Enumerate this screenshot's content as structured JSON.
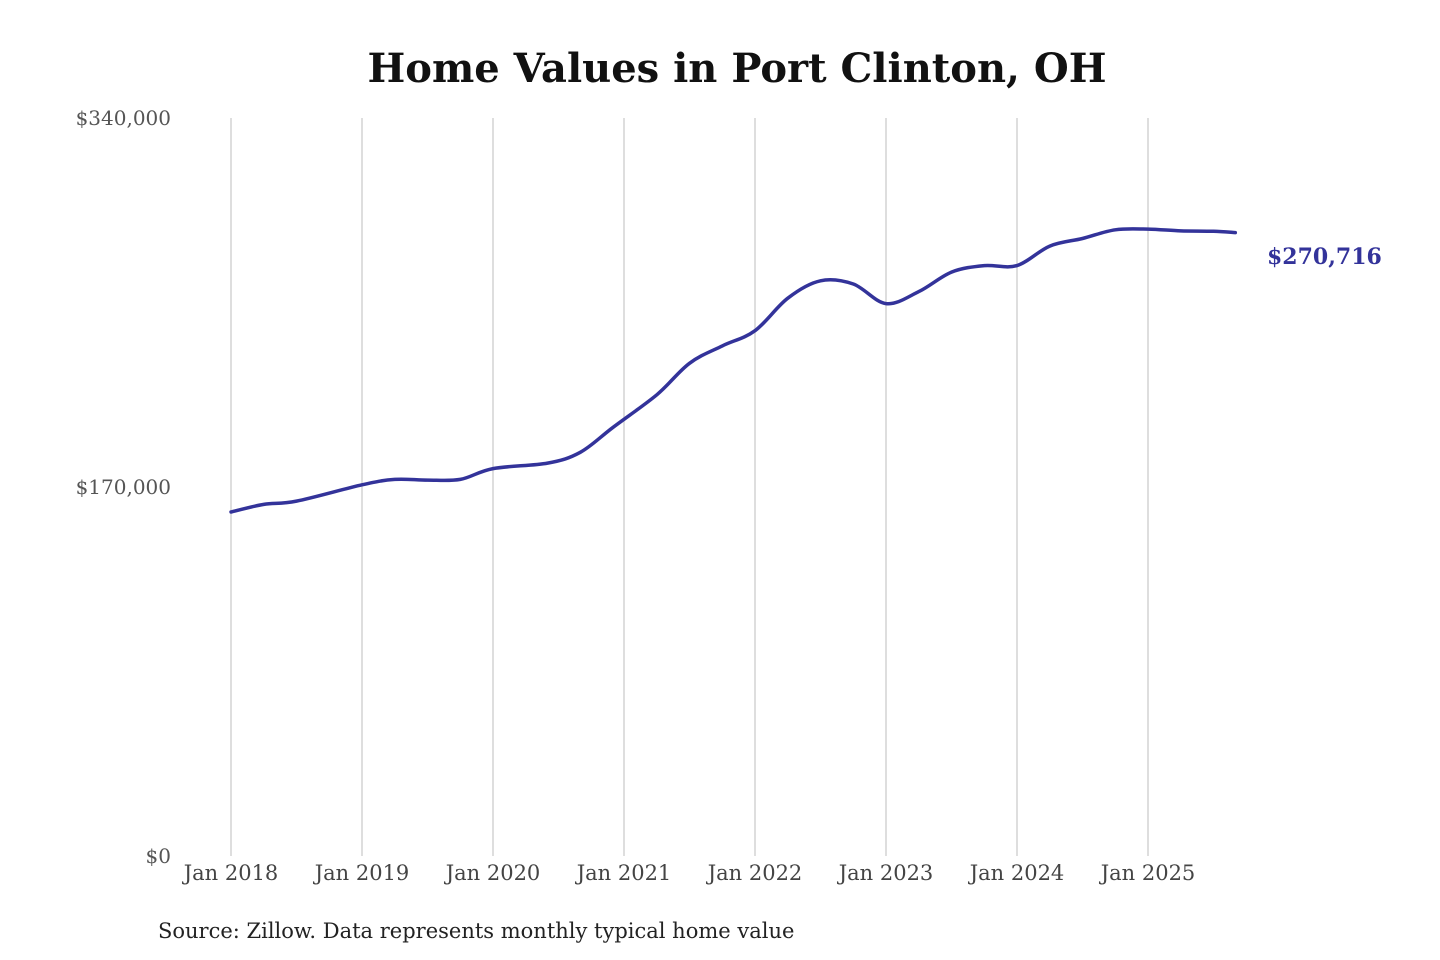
{
  "chart_data": {
    "type": "line",
    "title": "Home Values in Port Clinton, OH",
    "xlabel": "",
    "ylabel": "",
    "ylim": [
      0,
      340000
    ],
    "y_ticks": [
      {
        "value": 0,
        "label": "$0"
      },
      {
        "value": 170000,
        "label": "$170,000"
      },
      {
        "value": 340000,
        "label": "$340,000"
      }
    ],
    "x_ticks": [
      {
        "value": "2018-01",
        "label": "Jan 2018"
      },
      {
        "value": "2019-01",
        "label": "Jan 2019"
      },
      {
        "value": "2020-01",
        "label": "Jan 2020"
      },
      {
        "value": "2021-01",
        "label": "Jan 2021"
      },
      {
        "value": "2022-01",
        "label": "Jan 2022"
      },
      {
        "value": "2023-01",
        "label": "Jan 2023"
      },
      {
        "value": "2024-01",
        "label": "Jan 2024"
      },
      {
        "value": "2025-01",
        "label": "Jan 2025"
      }
    ],
    "grid": "vertical",
    "legend": "none",
    "line_color": "#33339a",
    "series": [
      {
        "x": [
          "2018-01",
          "2018-04",
          "2018-07",
          "2019-01",
          "2019-04",
          "2019-07",
          "2019-10",
          "2020-01",
          "2020-06",
          "2020-09",
          "2020-12",
          "2021-04",
          "2021-07",
          "2021-10",
          "2022-01",
          "2022-04",
          "2022-07",
          "2022-10",
          "2023-01",
          "2023-04",
          "2023-07",
          "2023-10",
          "2024-01",
          "2024-04",
          "2024-07",
          "2024-10",
          "2025-01",
          "2025-04",
          "2025-07",
          "2025-09"
        ],
        "values": [
          158500,
          162000,
          163500,
          171000,
          173500,
          173200,
          173500,
          178500,
          181000,
          186000,
          197500,
          212500,
          227000,
          235000,
          242000,
          257000,
          265000,
          263500,
          254500,
          260000,
          269000,
          272000,
          272000,
          281000,
          284500,
          288500,
          288800,
          288000,
          287800,
          287200
        ]
      }
    ],
    "annotations": [
      {
        "text": "$270,716"
      }
    ]
  },
  "source_note": "Source: Zillow. Data represents monthly typical home value"
}
